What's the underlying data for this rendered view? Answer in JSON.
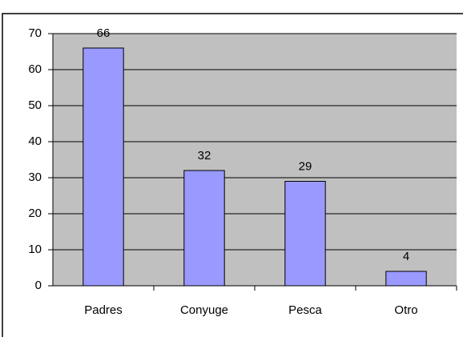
{
  "chart_data": {
    "type": "bar",
    "categories": [
      "Padres",
      "Conyuge",
      "Pesca",
      "Otro"
    ],
    "values": [
      66,
      32,
      29,
      4
    ],
    "color": "#9999ff",
    "ylim": [
      0,
      70
    ],
    "yticks": [
      0,
      10,
      20,
      30,
      40,
      50,
      60,
      70
    ],
    "grid": true
  }
}
